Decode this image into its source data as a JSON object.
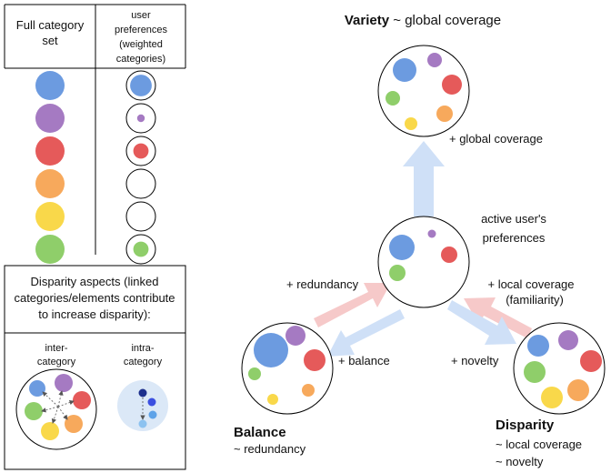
{
  "left_table": {
    "col1_header": [
      "Full category",
      "set"
    ],
    "col2_header": [
      "user",
      "preferences",
      "(weighted",
      "categories)"
    ]
  },
  "colors": {
    "blue": "#6c9be0",
    "purple": "#a57ac2",
    "red": "#e55a5a",
    "orange": "#f7a95c",
    "yellow": "#f9d84a",
    "green": "#8fce6a",
    "arrow_blue": "#cfe0f7",
    "arrow_pink": "#f6c9c9",
    "intra_bg": "#dbe8f7"
  },
  "categories": [
    {
      "name": "blue",
      "weight": 0.85
    },
    {
      "name": "purple",
      "weight": 0.3
    },
    {
      "name": "red",
      "weight": 0.6
    },
    {
      "name": "orange",
      "weight": 0
    },
    {
      "name": "yellow",
      "weight": 0
    },
    {
      "name": "green",
      "weight": 0.6
    }
  ],
  "disparity_box": {
    "title_lines": [
      "Disparity aspects (linked",
      "categories/elements contribute",
      "to increase disparity):"
    ],
    "inter_label": [
      "inter-",
      "category"
    ],
    "intra_label": [
      "intra-",
      "category"
    ]
  },
  "variety": {
    "title": "Variety",
    "subtitle": " ~ global coverage",
    "edge_label": "+ global coverage"
  },
  "center": {
    "label_lines": [
      "active user's",
      "preferences"
    ]
  },
  "balance": {
    "title": "Balance",
    "subtitle": "~ redundancy",
    "edge_in": "+ redundancy",
    "edge_out": "+ balance"
  },
  "disparity": {
    "title": "Disparity",
    "subtitle_lines": [
      "~ local coverage",
      "~ novelty"
    ],
    "edge_in_lines": [
      "+ local coverage",
      "(familiarity)"
    ],
    "edge_out": "+ novelty"
  }
}
